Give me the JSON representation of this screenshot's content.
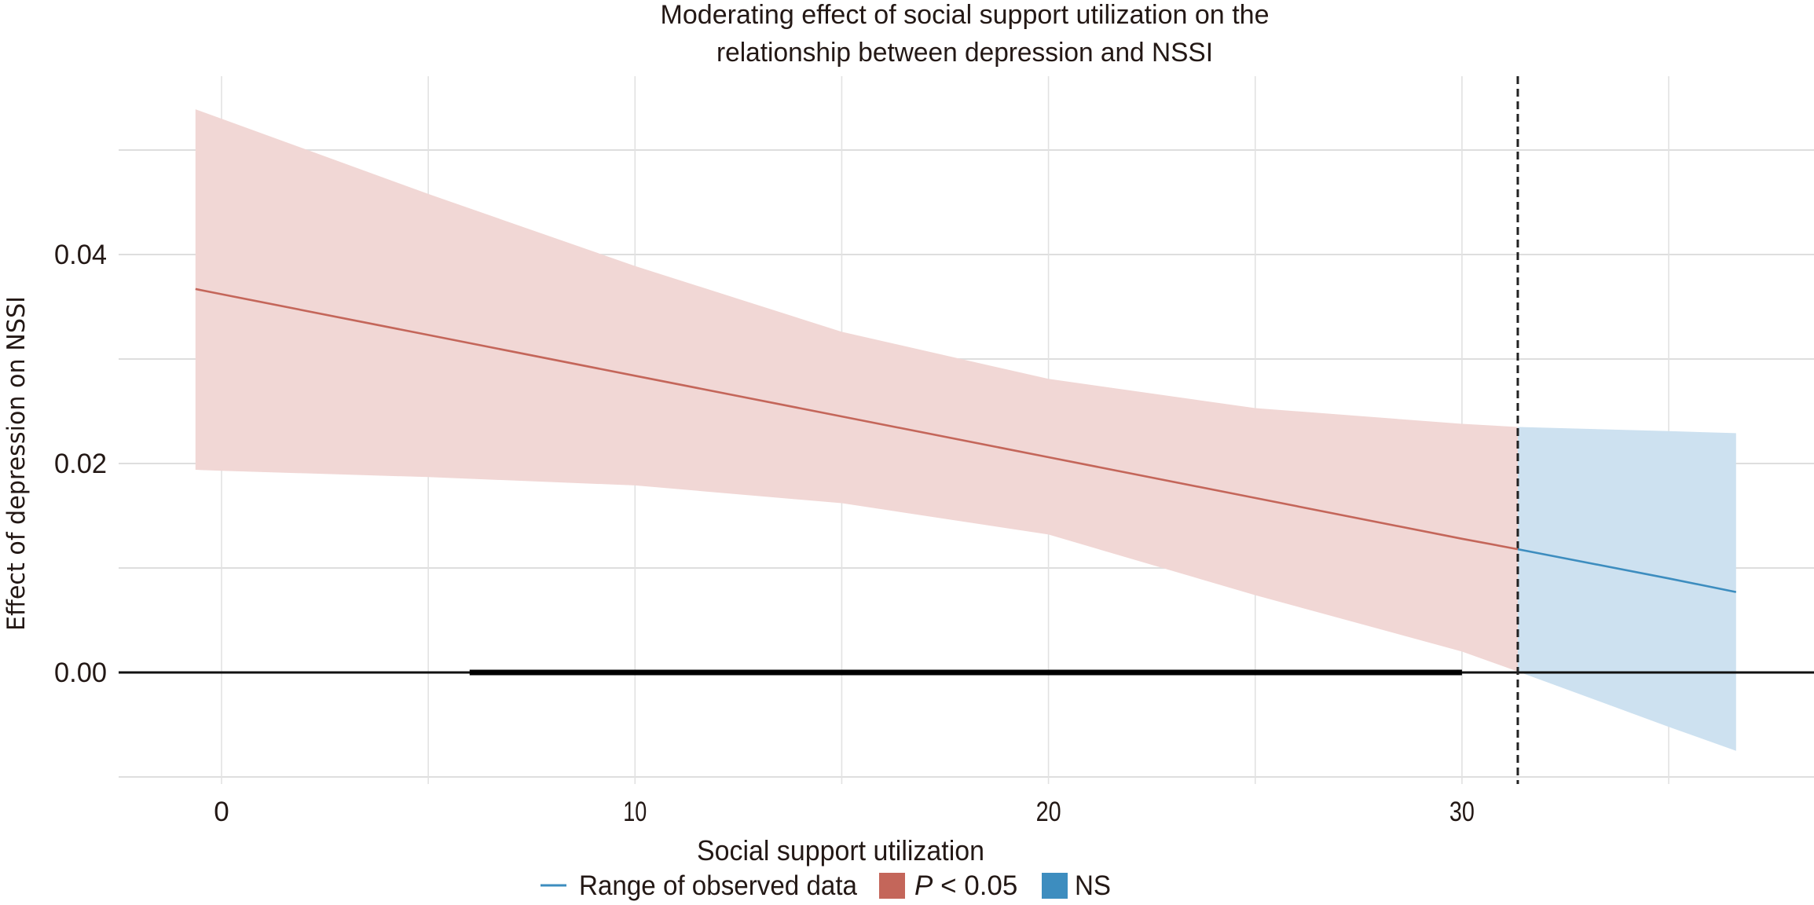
{
  "chart_data": {
    "type": "line",
    "title": [
      "Moderating effect of social support utilization on the",
      "relationship between depression and NSSI"
    ],
    "xlabel": "Social support utilization",
    "ylabel": "Effect of depression on NSSI",
    "xlim": [
      -2.5,
      38.7
    ],
    "ylim": [
      -0.01,
      0.057
    ],
    "x_ticks": [
      0,
      10,
      20,
      30
    ],
    "x_tick_labels": [
      "0",
      "10",
      "20",
      "30"
    ],
    "x_minor_grid": [
      5,
      15,
      25,
      35
    ],
    "y_ticks": [
      0.0,
      0.02,
      0.04
    ],
    "y_tick_labels": [
      "0.00",
      "0.02",
      "0.04"
    ],
    "y_minor_grid": [
      -0.01,
      0.01,
      0.03,
      0.05
    ],
    "grid": true,
    "johnson_neyman_point": 31.35,
    "observed_range": [
      6,
      30
    ],
    "reference_line_y": 0,
    "series": [
      {
        "name": "P < 0.05",
        "color": "#c4665a",
        "band_color": "#f1d7d5",
        "x": [
          -0.63,
          0,
          5,
          10,
          15,
          20,
          25,
          30,
          31.35
        ],
        "estimate": [
          0.0367,
          0.0362,
          0.0323,
          0.0284,
          0.0245,
          0.0206,
          0.0167,
          0.0128,
          0.0118
        ],
        "upper": [
          0.0539,
          0.053,
          0.0458,
          0.0389,
          0.0326,
          0.0281,
          0.0253,
          0.0238,
          0.0235
        ],
        "lower": [
          0.0194,
          0.0193,
          0.0187,
          0.0179,
          0.0162,
          0.0132,
          0.0074,
          0.002,
          0.0001
        ]
      },
      {
        "name": "NS",
        "color": "#3d8dbf",
        "band_color": "#cde1f0",
        "x": [
          31.35,
          35,
          36.63
        ],
        "estimate": [
          0.0118,
          0.009,
          0.0077
        ],
        "upper": [
          0.0235,
          0.0231,
          0.0229
        ],
        "lower": [
          0.0001,
          -0.0052,
          -0.0075
        ]
      }
    ],
    "legend": {
      "position": "bottom",
      "items": [
        {
          "label": "Range of observed data",
          "type": "line",
          "color": "#3d8dbf"
        },
        {
          "label_italic": "P",
          "label_rest": " < 0.05",
          "type": "fill",
          "color": "#c4665a"
        },
        {
          "label": "NS",
          "type": "fill",
          "color": "#3d8dbf"
        }
      ]
    }
  }
}
